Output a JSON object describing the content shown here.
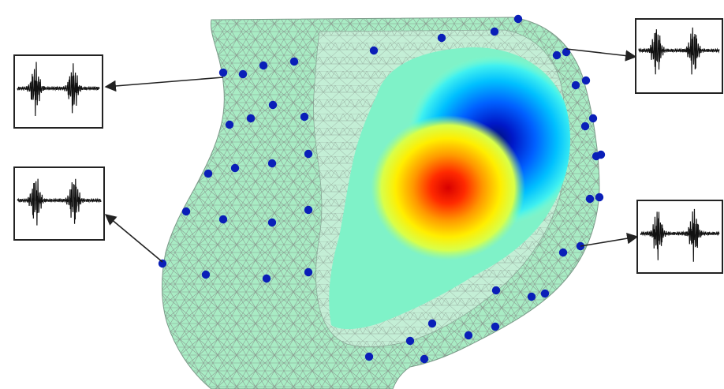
{
  "figure": {
    "description_free": true,
    "colors": {
      "mesh_fill": "#a8ecc4",
      "mesh_line": "#8a9a90",
      "sensor_dot": "#0a1fb8",
      "box_stroke": "#222222",
      "signal_stroke": "#111111",
      "arrow": "#222222",
      "map_positive": "#e80000",
      "map_negative": "#00107a",
      "map_neutral": "#7ff2c8"
    },
    "icons": {
      "sensor": "sensor-dot-icon",
      "signal": "waveform-icon",
      "arrow": "arrow-icon"
    },
    "signal_panels": [
      {
        "id": "top-left"
      },
      {
        "id": "bottom-left"
      },
      {
        "id": "top-right"
      },
      {
        "id": "bottom-right"
      }
    ]
  }
}
